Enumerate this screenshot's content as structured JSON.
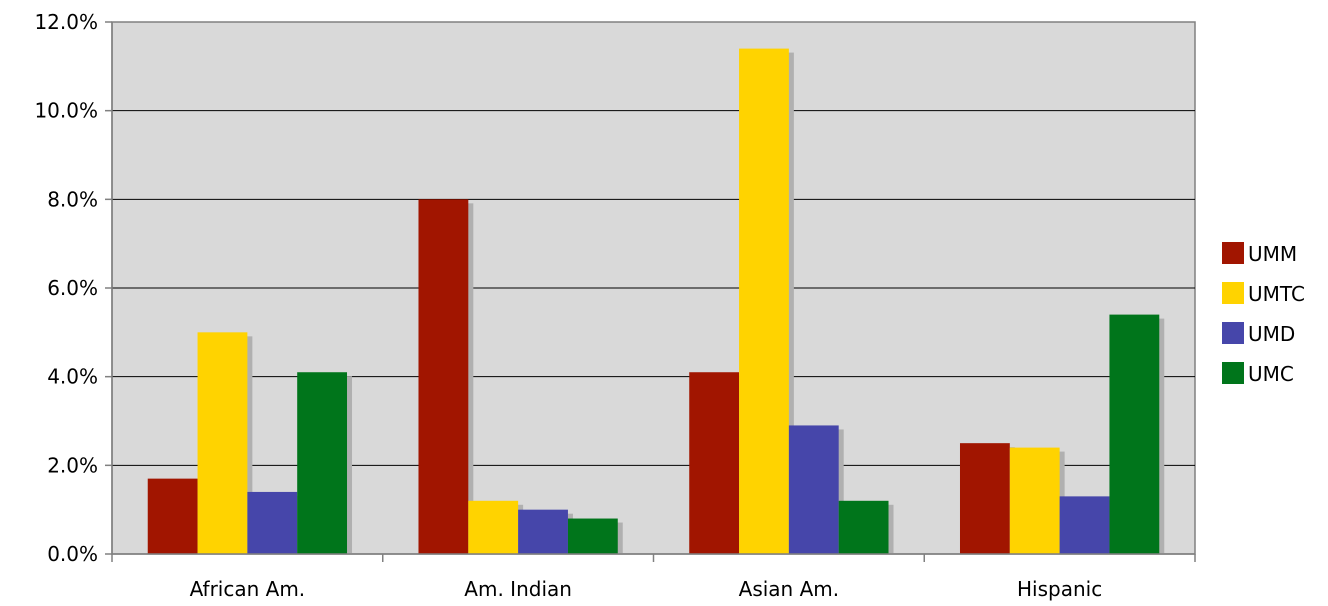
{
  "chart_data": {
    "type": "bar",
    "title": "",
    "xlabel": "",
    "ylabel": "",
    "categories": [
      "African Am.",
      "Am. Indian",
      "Asian Am.",
      "Hispanic"
    ],
    "series": [
      {
        "name": "UMM",
        "color": "#A11500",
        "values": [
          1.7,
          8.0,
          4.1,
          2.5
        ]
      },
      {
        "name": "UMTC",
        "color": "#FFD300",
        "values": [
          5.0,
          1.2,
          11.4,
          2.4
        ]
      },
      {
        "name": "UMD",
        "color": "#4646AA",
        "values": [
          1.4,
          1.0,
          2.9,
          1.3
        ]
      },
      {
        "name": "UMC",
        "color": "#00751B",
        "values": [
          4.1,
          0.8,
          1.2,
          5.4
        ]
      }
    ],
    "ylim": [
      0,
      12
    ],
    "yticks": [
      0,
      2,
      4,
      6,
      8,
      10,
      12
    ],
    "ytick_labels": [
      "0.0%",
      "2.0%",
      "4.0%",
      "6.0%",
      "8.0%",
      "10.0%",
      "12.0%"
    ],
    "grid": true,
    "plot_background": "#D9D9D9",
    "shadow_color": "#B0B0B0",
    "legend_position": "right"
  }
}
